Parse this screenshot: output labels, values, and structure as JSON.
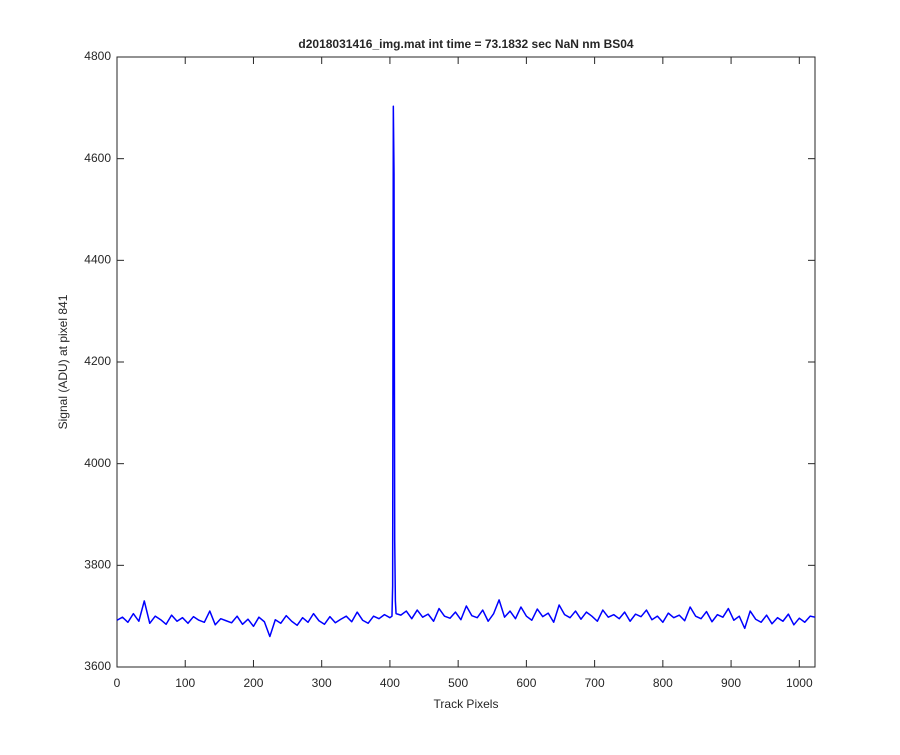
{
  "chart_data": {
    "type": "line",
    "title": "d2018031416_img.mat int time = 73.1832 sec  NaN nm BS04",
    "x_label": "Track Pixels",
    "y_label": "Signal (ADU) at pixel 841",
    "color": "#0000ff",
    "xlim": [
      0,
      1023
    ],
    "ylim": [
      3600,
      4800
    ],
    "xticks": [
      0,
      100,
      200,
      300,
      400,
      500,
      600,
      700,
      800,
      900,
      1000
    ],
    "yticks": [
      3600,
      3800,
      4000,
      4200,
      4400,
      4600,
      4800
    ],
    "grid": false,
    "x": [
      0,
      8,
      16,
      24,
      32,
      40,
      48,
      56,
      64,
      72,
      80,
      88,
      96,
      104,
      112,
      120,
      128,
      136,
      144,
      152,
      160,
      168,
      176,
      184,
      192,
      200,
      208,
      216,
      224,
      232,
      240,
      248,
      256,
      264,
      272,
      280,
      288,
      296,
      304,
      312,
      320,
      328,
      336,
      344,
      352,
      360,
      368,
      376,
      384,
      392,
      400,
      403,
      404,
      405,
      406,
      407,
      408,
      409,
      416,
      424,
      432,
      440,
      448,
      456,
      464,
      472,
      480,
      488,
      496,
      504,
      512,
      520,
      528,
      536,
      544,
      552,
      560,
      568,
      576,
      584,
      592,
      600,
      608,
      616,
      624,
      632,
      640,
      648,
      656,
      664,
      672,
      680,
      688,
      696,
      704,
      712,
      720,
      728,
      736,
      744,
      752,
      760,
      768,
      776,
      784,
      792,
      800,
      808,
      816,
      824,
      832,
      840,
      848,
      856,
      864,
      872,
      880,
      888,
      896,
      904,
      912,
      920,
      928,
      936,
      944,
      952,
      960,
      968,
      976,
      984,
      992,
      1000,
      1008,
      1016,
      1023
    ],
    "values": [
      3692,
      3698,
      3688,
      3705,
      3690,
      3730,
      3686,
      3700,
      3693,
      3684,
      3702,
      3690,
      3697,
      3686,
      3699,
      3692,
      3688,
      3710,
      3683,
      3695,
      3691,
      3687,
      3700,
      3684,
      3694,
      3680,
      3698,
      3689,
      3660,
      3693,
      3686,
      3701,
      3690,
      3682,
      3697,
      3688,
      3705,
      3691,
      3684,
      3699,
      3687,
      3694,
      3700,
      3689,
      3708,
      3692,
      3686,
      3700,
      3695,
      3703,
      3697,
      3700,
      3760,
      4703,
      4570,
      3850,
      3730,
      3705,
      3702,
      3710,
      3695,
      3712,
      3698,
      3704,
      3690,
      3715,
      3700,
      3696,
      3708,
      3693,
      3720,
      3701,
      3697,
      3712,
      3690,
      3705,
      3732,
      3698,
      3710,
      3695,
      3718,
      3700,
      3692,
      3714,
      3699,
      3706,
      3688,
      3722,
      3703,
      3697,
      3710,
      3694,
      3708,
      3700,
      3690,
      3712,
      3698,
      3703,
      3695,
      3708,
      3690,
      3704,
      3699,
      3712,
      3693,
      3700,
      3688,
      3706,
      3697,
      3702,
      3691,
      3718,
      3700,
      3695,
      3709,
      3689,
      3703,
      3698,
      3715,
      3692,
      3700,
      3676,
      3710,
      3694,
      3688,
      3702,
      3685,
      3697,
      3690,
      3704,
      3683,
      3696,
      3688,
      3700,
      3698
    ]
  }
}
